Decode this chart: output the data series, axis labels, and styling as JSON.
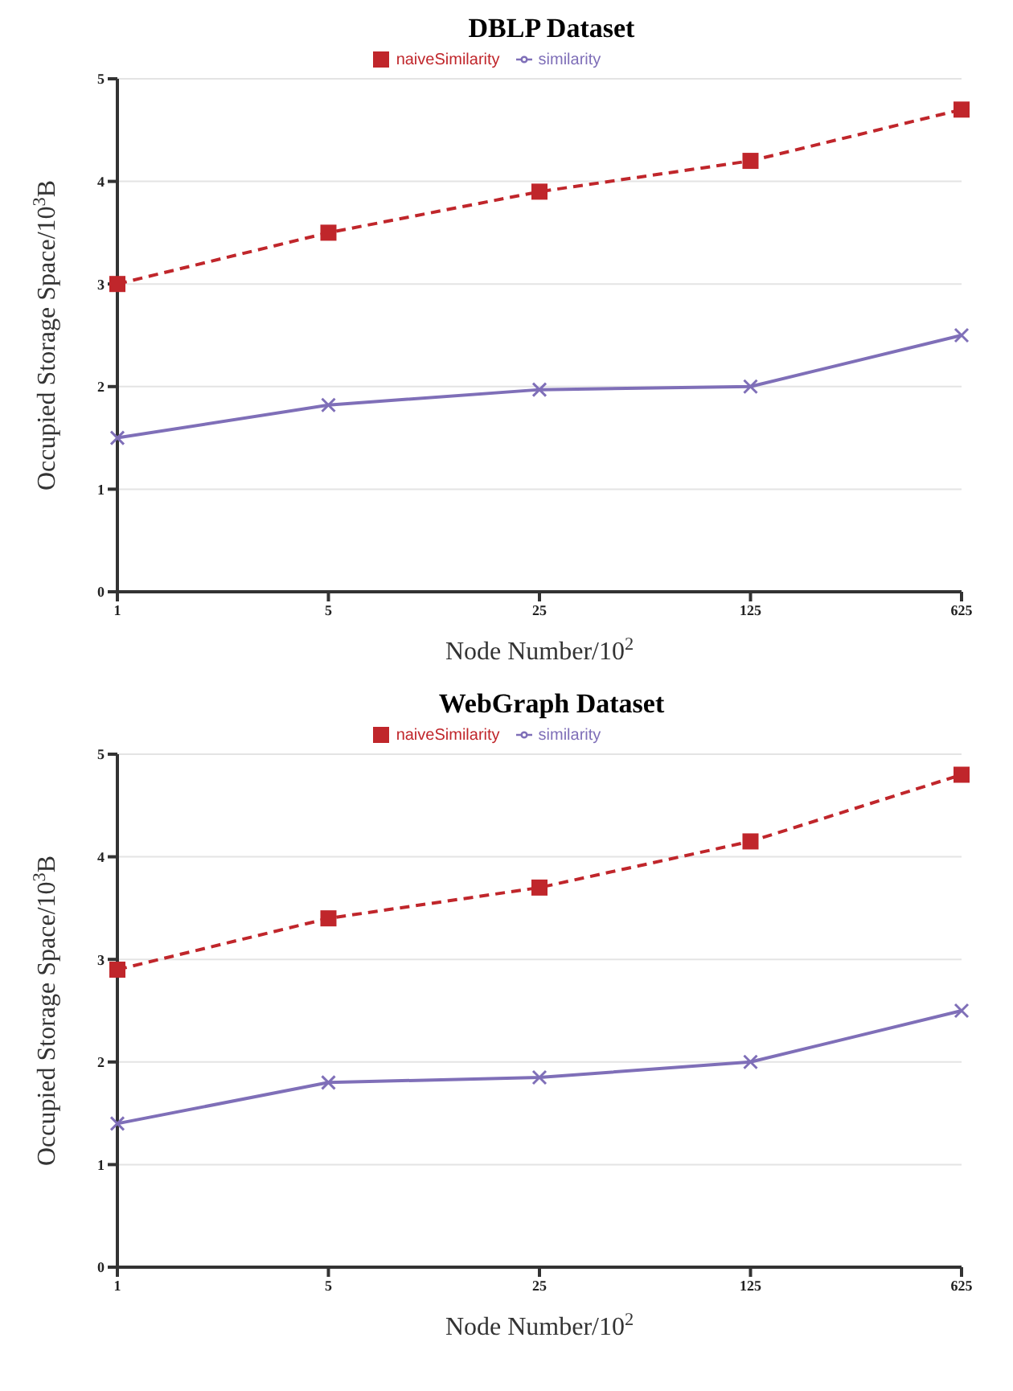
{
  "chart_data": [
    {
      "type": "line",
      "title": "DBLP Dataset",
      "xlabel": "Node Number/10$^{2}$",
      "ylabel": "Occupied Storage Space/10$^{3}$B",
      "categories": [
        "1",
        "5",
        "25",
        "125",
        "625"
      ],
      "series": [
        {
          "name": "naiveSimilarity",
          "color": "#c0262b",
          "marker": "square",
          "line_style": "dashed",
          "values": [
            3.0,
            3.5,
            3.9,
            4.2,
            4.7
          ]
        },
        {
          "name": "similarity",
          "color": "#7f6fb8",
          "marker": "cross",
          "line_style": "solid",
          "values": [
            1.5,
            1.82,
            1.97,
            2.0,
            2.5
          ]
        }
      ],
      "ylim": [
        0,
        5
      ],
      "yticks": [
        0,
        1,
        2,
        3,
        4,
        5
      ],
      "grid": "y",
      "legend": "top"
    },
    {
      "type": "line",
      "title": "WebGraph Dataset",
      "xlabel": "Node Number/10$^{2}$",
      "ylabel": "Occupied Storage Space/10$^{3}$B",
      "categories": [
        "1",
        "5",
        "25",
        "125",
        "625"
      ],
      "series": [
        {
          "name": "naiveSimilarity",
          "color": "#c0262b",
          "marker": "square",
          "line_style": "dashed",
          "values": [
            2.9,
            3.4,
            3.7,
            4.15,
            4.8
          ]
        },
        {
          "name": "similarity",
          "color": "#7f6fb8",
          "marker": "cross",
          "line_style": "solid",
          "values": [
            1.4,
            1.8,
            1.85,
            2.0,
            2.5
          ]
        }
      ],
      "ylim": [
        0,
        5
      ],
      "yticks": [
        0,
        1,
        2,
        3,
        4,
        5
      ],
      "grid": "y",
      "legend": "top"
    }
  ]
}
